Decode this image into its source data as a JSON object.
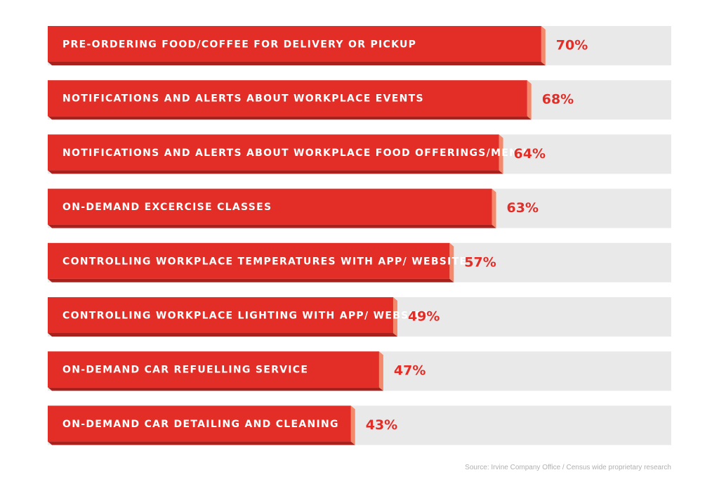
{
  "chart_data": {
    "type": "bar",
    "orientation": "horizontal",
    "categories": [
      "PRE-ORDERING FOOD/COFFEE FOR DELIVERY OR PICKUP",
      "NOTIFICATIONS AND ALERTS ABOUT WORKPLACE EVENTS",
      "NOTIFICATIONS AND ALERTS ABOUT WORKPLACE FOOD OFFERINGS/MENU",
      "ON-DEMAND EXCERCISE CLASSES",
      "CONTROLLING WORKPLACE TEMPERATURES WITH APP/ WEBSITE",
      "CONTROLLING WORKPLACE LIGHTING WITH APP/ WEBSITE",
      "ON-DEMAND CAR REFUELLING SERVICE",
      "ON-DEMAND CAR DETAILING AND CLEANING"
    ],
    "values": [
      70,
      68,
      64,
      63,
      57,
      49,
      47,
      43
    ],
    "value_labels": [
      "70%",
      "68%",
      "64%",
      "63%",
      "57%",
      "49%",
      "47%",
      "43%"
    ],
    "xlim": [
      0,
      100
    ],
    "grid": false,
    "legend": "none",
    "colors": {
      "bar": "#e32d27",
      "bar_bottom": "#a8211c",
      "bar_edge": "#f4886a",
      "track": "#e9e9ea",
      "value_text": "#e32d27",
      "label_text": "#ffffff"
    }
  },
  "footer": {
    "source": "Source: Irvine Company Office / Census wide proprietary research"
  }
}
